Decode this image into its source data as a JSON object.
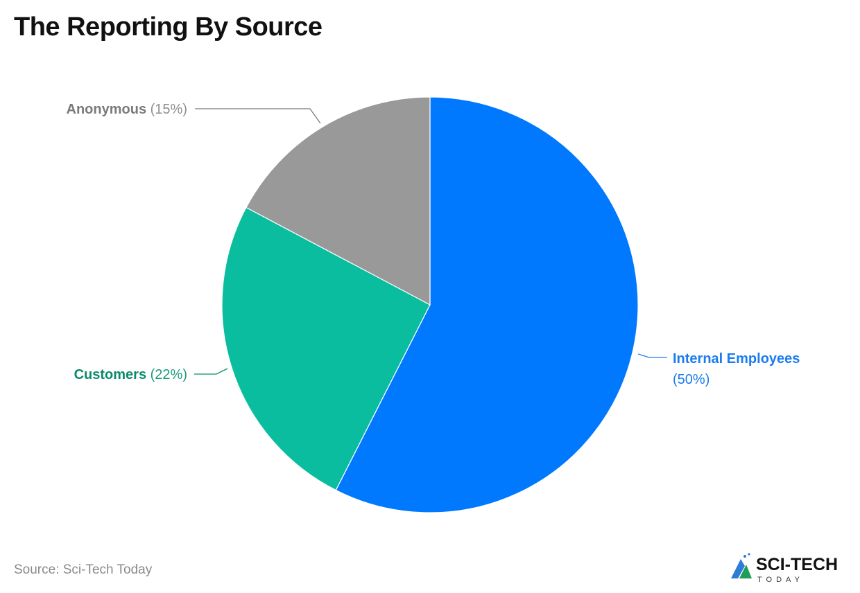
{
  "chart_data": {
    "type": "pie",
    "title": "The Reporting By Source",
    "source": "Source: Sci-Tech Today",
    "slices": [
      {
        "label": "Internal Employees",
        "value": 50,
        "display": "(50%)",
        "color": "#0079ff",
        "label_color": "#1a7cf0"
      },
      {
        "label": "Customers",
        "value": 22,
        "display": "(22%)",
        "color": "#0abd9f",
        "label_color": "#0b8a6a"
      },
      {
        "label": "Anonymous",
        "value": 15,
        "display": "(15%)",
        "color": "#999999",
        "label_color": "#7a7a7a"
      }
    ],
    "start_angle": "top, clockwise"
  },
  "logo": {
    "text_main": "SCI-TECH",
    "text_sub": "TODAY"
  }
}
